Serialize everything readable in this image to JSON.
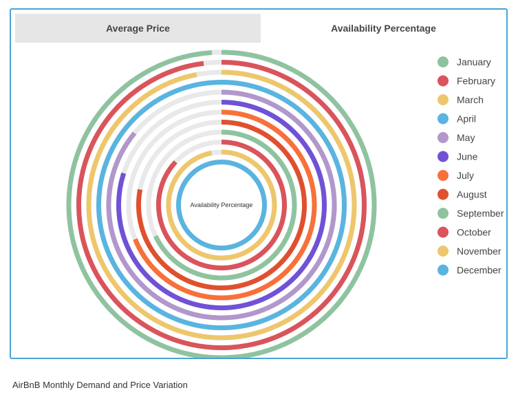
{
  "tabs": [
    {
      "label": "Average Price",
      "active": false
    },
    {
      "label": "Availability Percentage",
      "active": true
    }
  ],
  "caption": "AirBnB Monthly Demand and Price Variation",
  "chart_data": {
    "type": "radial-bar",
    "center_label": "Availability Percentage",
    "track_color": "#e9e9e9",
    "categories": [
      "January",
      "February",
      "March",
      "April",
      "May",
      "June",
      "July",
      "August",
      "September",
      "October",
      "November",
      "December"
    ],
    "values": [
      99,
      98,
      97,
      100,
      86,
      80,
      69,
      78,
      68,
      87,
      97,
      100
    ],
    "colors": [
      "#8fc3a0",
      "#d9545b",
      "#eec66b",
      "#5ab4e0",
      "#b197cc",
      "#6f52d6",
      "#f8703a",
      "#e0502e",
      "#8fc3a0",
      "#d9545b",
      "#eec66b",
      "#5ab4e0"
    ],
    "legend_position": "right"
  }
}
